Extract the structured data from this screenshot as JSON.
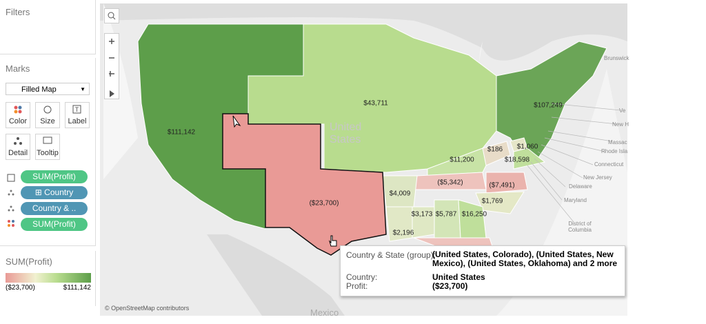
{
  "sidebar": {
    "filters_title": "Filters",
    "marks_title": "Marks",
    "mark_type": "Filled Map",
    "buttons": [
      "Color",
      "Size",
      "Label",
      "Detail",
      "Tooltip"
    ],
    "pills": [
      "SUM(Profit)",
      "⊞ Country",
      "Country & ..",
      "SUM(Profit)"
    ],
    "legend": {
      "title": "SUM(Profit)",
      "min_label": "($23,700)",
      "max_label": "$111,142"
    }
  },
  "map": {
    "region_labels": [
      "$111,142",
      "$43,711",
      "($23,700)",
      "$107,249",
      "$11,200",
      "$186",
      "$1,060",
      "$18,598",
      "($5,342)",
      "($7,491)",
      "$4,009",
      "$1,769",
      "$3,173",
      "$5,787",
      "$16,250",
      "$2,196"
    ],
    "place_labels": [
      "United States",
      "Brunswick",
      "Ve",
      "New H",
      "Massac",
      "Rhode Isla",
      "Connecticut",
      "New Jersey",
      "Delaware",
      "Maryland",
      "District of Columbia",
      "Mexico"
    ],
    "attribution": "© OpenStreetMap contributors"
  },
  "tooltip": {
    "rows": [
      {
        "label": "Country & State (group):",
        "value": "(United States, Colorado), (United States, New Mexico), (United States, Oklahoma) and 2 more"
      },
      {
        "label": "Country:",
        "value": "United States"
      },
      {
        "label": "Profit:",
        "value": "($23,700)"
      }
    ]
  }
}
